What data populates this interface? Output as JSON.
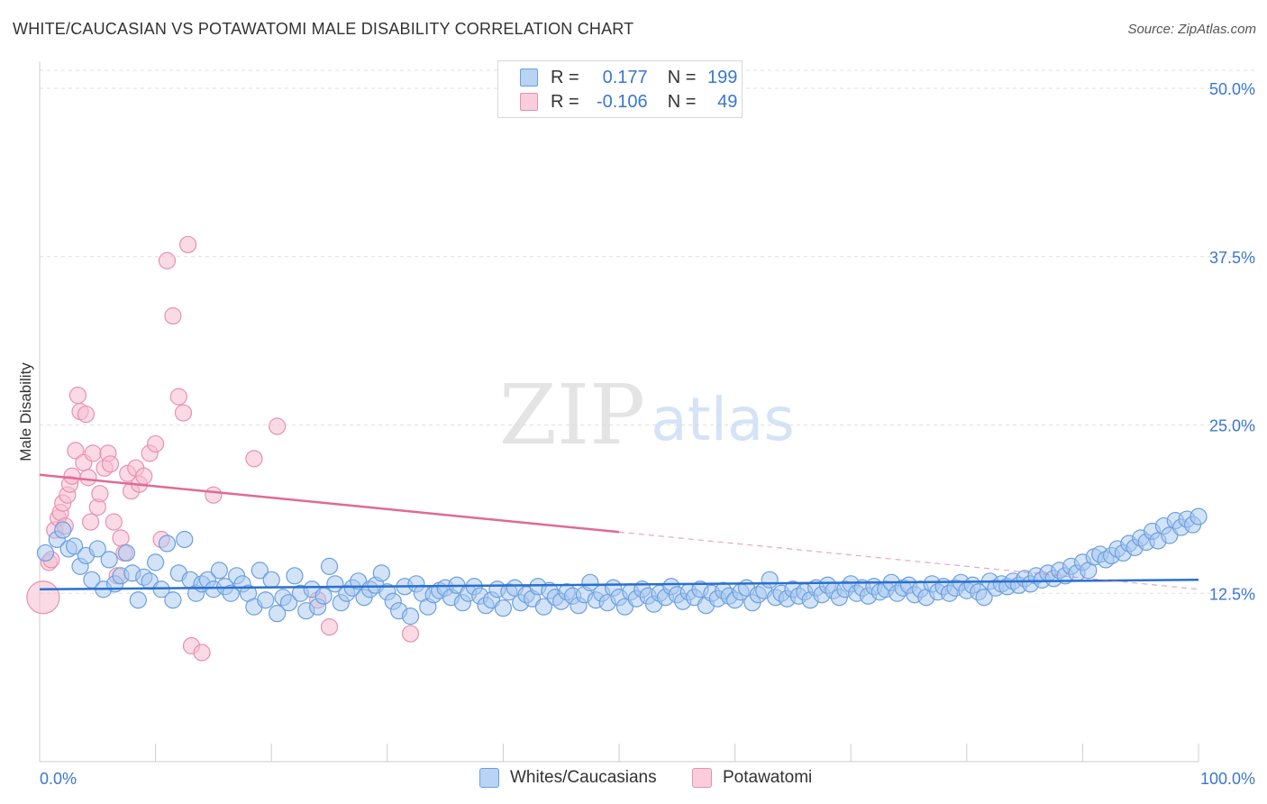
{
  "title": "WHITE/CAUCASIAN VS POTAWATOMI MALE DISABILITY CORRELATION CHART",
  "source": "Source: ZipAtlas.com",
  "watermark": {
    "zip": "ZIP",
    "atlas": "atlas"
  },
  "legend_top": {
    "series1": {
      "r_label": "R =",
      "r_value": "0.177",
      "n_label": "N =",
      "n_value": "199"
    },
    "series2": {
      "r_label": "R =",
      "r_value": "-0.106",
      "n_label": "N =",
      "n_value": "49"
    }
  },
  "legend_bottom": {
    "series1": "Whites/Caucasians",
    "series2": "Potawatomi"
  },
  "colors": {
    "blue_fill": "#a8c8f0",
    "blue_stroke": "#6a9fe0",
    "blue_line": "#2a6fd0",
    "pink_fill": "#f6bdd0",
    "pink_stroke": "#e890b0",
    "pink_line": "#e06a95",
    "axis_label": "#3b77d0",
    "grid": "#e0e0e0"
  },
  "chart_data": {
    "type": "scatter",
    "title": "WHITE/CAUCASIAN VS POTAWATOMI MALE DISABILITY CORRELATION CHART",
    "xlabel": "",
    "ylabel": "Male Disability",
    "xlim": [
      0,
      100
    ],
    "ylim": [
      0,
      50
    ],
    "x_tick_labels": [
      "0.0%",
      "100.0%"
    ],
    "y_ticks": [
      12.5,
      25.0,
      37.5,
      50.0
    ],
    "y_tick_labels": [
      "12.5%",
      "25.0%",
      "37.5%",
      "50.0%"
    ],
    "grid": true,
    "series": [
      {
        "name": "Whites/Caucasians",
        "r": 0.177,
        "n": 199,
        "trend": {
          "x": [
            0,
            100
          ],
          "y": [
            12.8,
            13.5
          ]
        },
        "points": [
          [
            0.5,
            15.5
          ],
          [
            1.5,
            16.5
          ],
          [
            2,
            17.2
          ],
          [
            2.5,
            15.8
          ],
          [
            3,
            16
          ],
          [
            3.5,
            14.5
          ],
          [
            4,
            15.3
          ],
          [
            4.5,
            13.5
          ],
          [
            5,
            15.8
          ],
          [
            5.5,
            12.8
          ],
          [
            6,
            15
          ],
          [
            6.5,
            13.2
          ],
          [
            7,
            13.8
          ],
          [
            7.5,
            15.5
          ],
          [
            8,
            14
          ],
          [
            8.5,
            12
          ],
          [
            9,
            13.7
          ],
          [
            9.5,
            13.4
          ],
          [
            10,
            14.8
          ],
          [
            10.5,
            12.8
          ],
          [
            11,
            16.2
          ],
          [
            11.5,
            12
          ],
          [
            12,
            14
          ],
          [
            12.5,
            16.5
          ],
          [
            13,
            13.5
          ],
          [
            13.5,
            12.5
          ],
          [
            14,
            13.2
          ],
          [
            14.5,
            13.5
          ],
          [
            15,
            12.8
          ],
          [
            15.5,
            14.2
          ],
          [
            16,
            13
          ],
          [
            16.5,
            12.5
          ],
          [
            17,
            13.8
          ],
          [
            17.5,
            13.2
          ],
          [
            18,
            12.5
          ],
          [
            18.5,
            11.5
          ],
          [
            19,
            14.2
          ],
          [
            19.5,
            12
          ],
          [
            20,
            13.5
          ],
          [
            20.5,
            11
          ],
          [
            21,
            12.2
          ],
          [
            21.5,
            11.8
          ],
          [
            22,
            13.8
          ],
          [
            22.5,
            12.5
          ],
          [
            23,
            11.2
          ],
          [
            23.5,
            12.8
          ],
          [
            24,
            11.5
          ],
          [
            24.5,
            12.3
          ],
          [
            25,
            14.5
          ],
          [
            25.5,
            13.2
          ],
          [
            26,
            11.8
          ],
          [
            26.5,
            12.5
          ],
          [
            27,
            12.9
          ],
          [
            27.5,
            13.4
          ],
          [
            28,
            12.2
          ],
          [
            28.5,
            12.8
          ],
          [
            29,
            13.1
          ],
          [
            29.5,
            14
          ],
          [
            30,
            12.6
          ],
          [
            30.5,
            11.9
          ],
          [
            31,
            11.2
          ],
          [
            31.5,
            13
          ],
          [
            32,
            10.8
          ],
          [
            32.5,
            13.2
          ],
          [
            33,
            12.5
          ],
          [
            33.5,
            11.5
          ],
          [
            34,
            12.4
          ],
          [
            34.5,
            12.7
          ],
          [
            35,
            12.9
          ],
          [
            35.5,
            12.2
          ],
          [
            36,
            13.1
          ],
          [
            36.5,
            11.8
          ],
          [
            37,
            12.5
          ],
          [
            37.5,
            13
          ],
          [
            38,
            12.3
          ],
          [
            38.5,
            11.6
          ],
          [
            39,
            12
          ],
          [
            39.5,
            12.8
          ],
          [
            40,
            11.4
          ],
          [
            40.5,
            12.6
          ],
          [
            41,
            12.9
          ],
          [
            41.5,
            11.8
          ],
          [
            42,
            12.4
          ],
          [
            42.5,
            12.1
          ],
          [
            43,
            13
          ],
          [
            43.5,
            11.5
          ],
          [
            44,
            12.7
          ],
          [
            44.5,
            12.2
          ],
          [
            45,
            11.9
          ],
          [
            45.5,
            12.6
          ],
          [
            46,
            12.3
          ],
          [
            46.5,
            11.6
          ],
          [
            47,
            12.4
          ],
          [
            47.5,
            13.3
          ],
          [
            48,
            12
          ],
          [
            48.5,
            12.5
          ],
          [
            49,
            11.8
          ],
          [
            49.5,
            12.9
          ],
          [
            50,
            12.2
          ],
          [
            50.5,
            11.5
          ],
          [
            51,
            12.6
          ],
          [
            51.5,
            12.1
          ],
          [
            52,
            12.8
          ],
          [
            52.5,
            12.3
          ],
          [
            53,
            11.7
          ],
          [
            53.5,
            12.5
          ],
          [
            54,
            12.2
          ],
          [
            54.5,
            13
          ],
          [
            55,
            12.4
          ],
          [
            55.5,
            11.9
          ],
          [
            56,
            12.6
          ],
          [
            56.5,
            12.2
          ],
          [
            57,
            12.8
          ],
          [
            57.5,
            11.6
          ],
          [
            58,
            12.5
          ],
          [
            58.5,
            12.1
          ],
          [
            59,
            12.7
          ],
          [
            59.5,
            12.3
          ],
          [
            60,
            12
          ],
          [
            60.5,
            12.6
          ],
          [
            61,
            12.9
          ],
          [
            61.5,
            11.8
          ],
          [
            62,
            12.4
          ],
          [
            62.5,
            12.7
          ],
          [
            63,
            13.5
          ],
          [
            63.5,
            12.2
          ],
          [
            64,
            12.5
          ],
          [
            64.5,
            12.1
          ],
          [
            65,
            12.8
          ],
          [
            65.5,
            12.3
          ],
          [
            66,
            12.6
          ],
          [
            66.5,
            12
          ],
          [
            67,
            12.9
          ],
          [
            67.5,
            12.4
          ],
          [
            68,
            13.1
          ],
          [
            68.5,
            12.7
          ],
          [
            69,
            12.2
          ],
          [
            69.5,
            12.8
          ],
          [
            70,
            13.2
          ],
          [
            70.5,
            12.5
          ],
          [
            71,
            12.9
          ],
          [
            71.5,
            12.3
          ],
          [
            72,
            13
          ],
          [
            72.5,
            12.6
          ],
          [
            73,
            12.8
          ],
          [
            73.5,
            13.3
          ],
          [
            74,
            12.5
          ],
          [
            74.5,
            12.9
          ],
          [
            75,
            13.1
          ],
          [
            75.5,
            12.4
          ],
          [
            76,
            12.8
          ],
          [
            76.5,
            12.2
          ],
          [
            77,
            13.2
          ],
          [
            77.5,
            12.6
          ],
          [
            78,
            13
          ],
          [
            78.5,
            12.5
          ],
          [
            79,
            12.9
          ],
          [
            79.5,
            13.3
          ],
          [
            80,
            12.7
          ],
          [
            80.5,
            13.1
          ],
          [
            81,
            12.6
          ],
          [
            81.5,
            12.2
          ],
          [
            82,
            13.4
          ],
          [
            82.5,
            12.9
          ],
          [
            83,
            13.2
          ],
          [
            83.5,
            13
          ],
          [
            84,
            13.4
          ],
          [
            84.5,
            13.1
          ],
          [
            85,
            13.6
          ],
          [
            85.5,
            13.2
          ],
          [
            86,
            13.8
          ],
          [
            86.5,
            13.5
          ],
          [
            87,
            14
          ],
          [
            87.5,
            13.6
          ],
          [
            88,
            14.2
          ],
          [
            88.5,
            13.8
          ],
          [
            89,
            14.5
          ],
          [
            89.5,
            14
          ],
          [
            90,
            14.8
          ],
          [
            90.5,
            14.2
          ],
          [
            91,
            15.2
          ],
          [
            91.5,
            15.4
          ],
          [
            92,
            15
          ],
          [
            92.5,
            15.3
          ],
          [
            93,
            15.8
          ],
          [
            93.5,
            15.5
          ],
          [
            94,
            16.2
          ],
          [
            94.5,
            15.9
          ],
          [
            95,
            16.6
          ],
          [
            95.5,
            16.3
          ],
          [
            96,
            17.1
          ],
          [
            96.5,
            16.4
          ],
          [
            97,
            17.5
          ],
          [
            97.5,
            16.8
          ],
          [
            98,
            17.9
          ],
          [
            98.5,
            17.4
          ],
          [
            99,
            18
          ],
          [
            99.5,
            17.6
          ],
          [
            100,
            18.2
          ]
        ]
      },
      {
        "name": "Potawatomi",
        "r": -0.106,
        "n": 49,
        "trend": {
          "x": [
            0,
            100
          ],
          "y": [
            21.3,
            12.8
          ],
          "solid_until": 50
        },
        "points": [
          [
            0.3,
            12.2
          ],
          [
            0.8,
            14.8
          ],
          [
            1,
            15
          ],
          [
            1.3,
            17.2
          ],
          [
            1.6,
            18.1
          ],
          [
            1.8,
            18.5
          ],
          [
            2,
            19.2
          ],
          [
            2.2,
            17.5
          ],
          [
            2.4,
            19.8
          ],
          [
            2.6,
            20.6
          ],
          [
            2.8,
            21.2
          ],
          [
            3.1,
            23.1
          ],
          [
            3.3,
            27.2
          ],
          [
            3.5,
            26
          ],
          [
            3.8,
            22.2
          ],
          [
            4,
            25.8
          ],
          [
            4.2,
            21.1
          ],
          [
            4.4,
            17.8
          ],
          [
            4.6,
            22.9
          ],
          [
            5,
            18.9
          ],
          [
            5.2,
            19.9
          ],
          [
            5.6,
            21.8
          ],
          [
            5.9,
            22.9
          ],
          [
            6.1,
            22.1
          ],
          [
            6.4,
            17.8
          ],
          [
            6.7,
            13.8
          ],
          [
            7,
            16.6
          ],
          [
            7.3,
            15.5
          ],
          [
            7.6,
            21.4
          ],
          [
            7.9,
            20.1
          ],
          [
            8.3,
            21.8
          ],
          [
            8.6,
            20.6
          ],
          [
            9,
            21.2
          ],
          [
            9.5,
            22.9
          ],
          [
            10,
            23.6
          ],
          [
            10.5,
            16.5
          ],
          [
            11,
            37.2
          ],
          [
            11.5,
            33.1
          ],
          [
            12,
            27.1
          ],
          [
            12.4,
            25.9
          ],
          [
            12.8,
            38.4
          ],
          [
            13.1,
            8.6
          ],
          [
            14,
            8.1
          ],
          [
            15,
            19.8
          ],
          [
            18.5,
            22.5
          ],
          [
            20.5,
            24.9
          ],
          [
            24,
            12
          ],
          [
            25,
            10
          ],
          [
            32,
            9.5
          ]
        ]
      }
    ]
  }
}
